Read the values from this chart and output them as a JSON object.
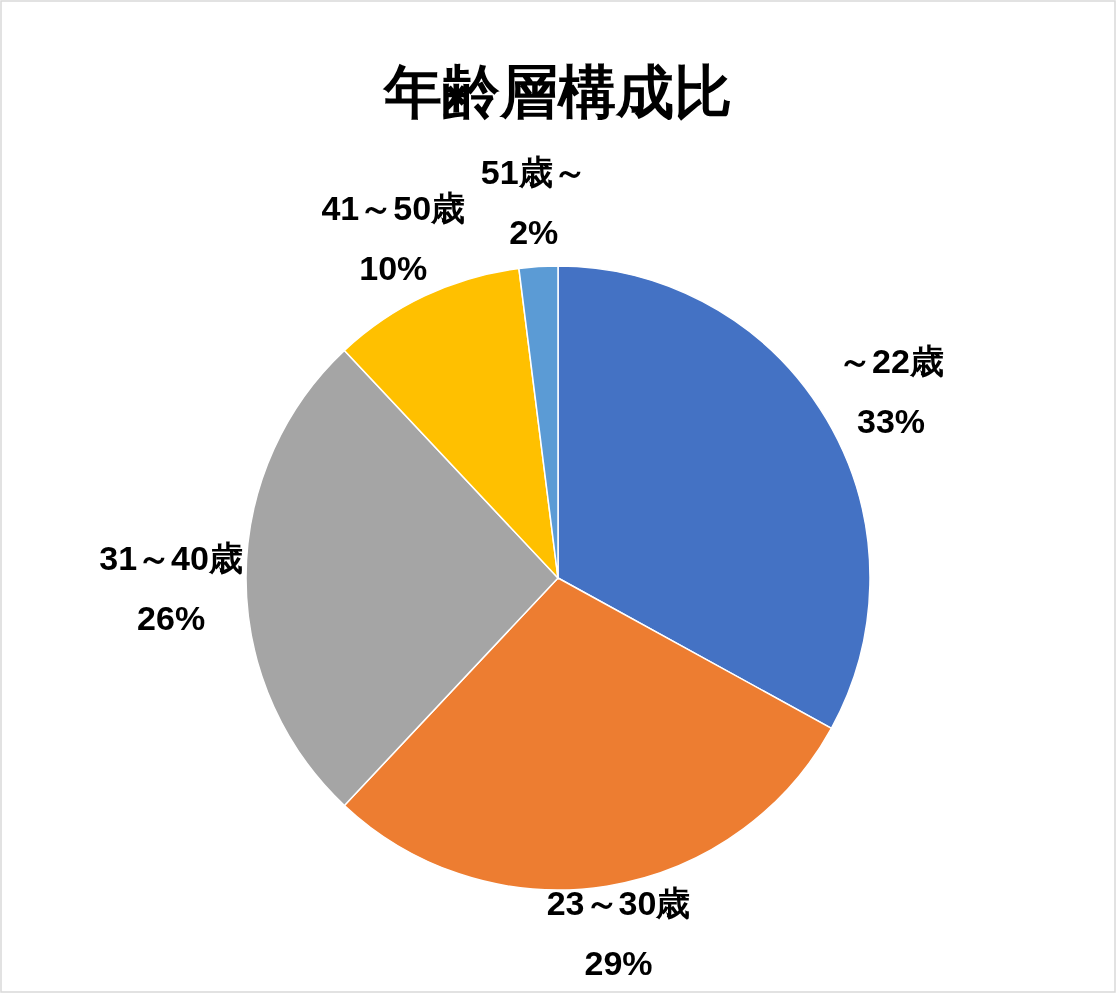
{
  "chart_data": {
    "type": "pie",
    "title": "年齢層構成比",
    "categories": [
      "～22歳",
      "23～30歳",
      "31～40歳",
      "41～50歳",
      "51歳～"
    ],
    "values": [
      33,
      29,
      26,
      10,
      2
    ],
    "colors": [
      "#4472c4",
      "#ed7d31",
      "#a5a5a5",
      "#ffc000",
      "#5b9bd5"
    ],
    "value_labels": [
      "33%",
      "29%",
      "26%",
      "10%",
      "2%"
    ]
  }
}
